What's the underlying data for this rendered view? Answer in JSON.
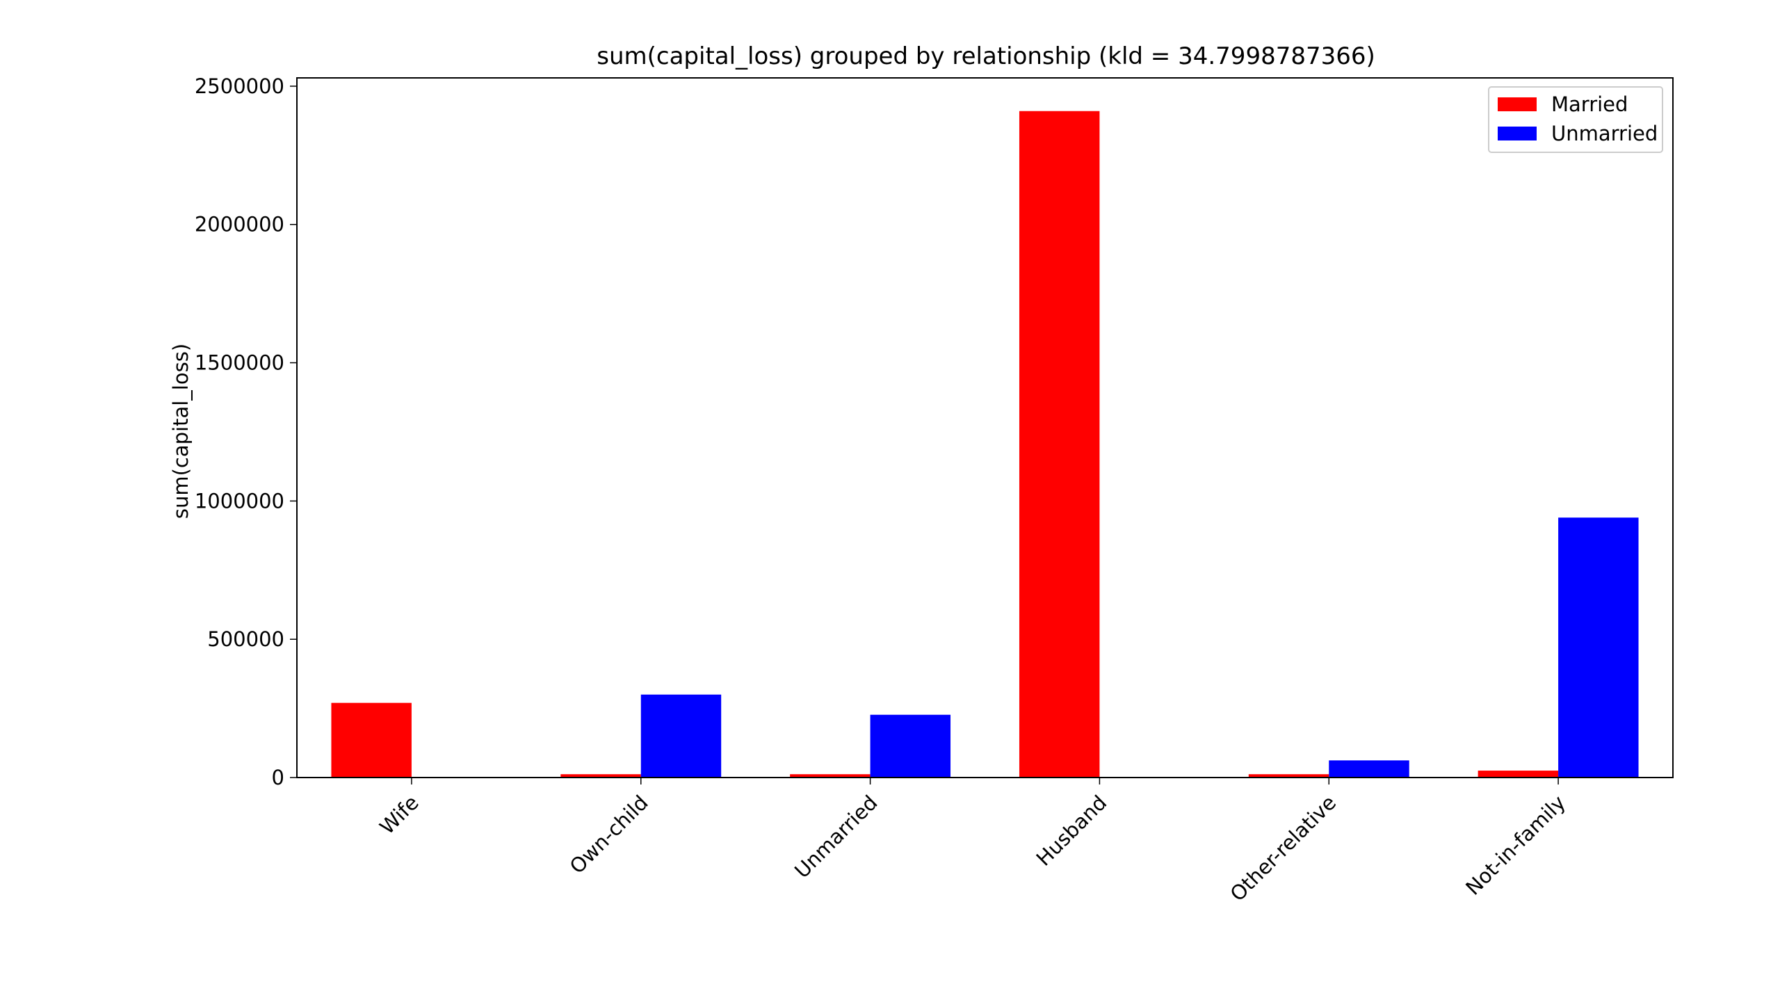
{
  "chart_data": {
    "type": "bar",
    "title": "sum(capital_loss) grouped by relationship (kld = 34.7998787366)",
    "xlabel": "",
    "ylabel": "sum(capital_loss)",
    "categories": [
      "Wife",
      "Own-child",
      "Unmarried",
      "Husband",
      "Other-relative",
      "Not-in-family"
    ],
    "series": [
      {
        "name": "Married",
        "color": "#ff0000",
        "values": [
          270000,
          12000,
          12000,
          2410000,
          12000,
          25000
        ]
      },
      {
        "name": "Unmarried",
        "color": "#0000ff",
        "values": [
          0,
          300000,
          227000,
          0,
          62000,
          940000
        ]
      }
    ],
    "ylim": [
      0,
      2530000
    ],
    "yticks": [
      0,
      500000,
      1000000,
      1500000,
      2000000,
      2500000
    ],
    "ytick_labels": [
      "0",
      "500000",
      "1000000",
      "1500000",
      "2000000",
      "2500000"
    ],
    "grid": false,
    "legend_position": "top-right"
  }
}
